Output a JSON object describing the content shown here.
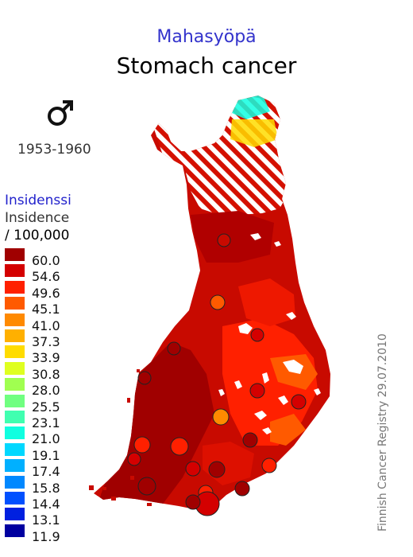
{
  "title_fi": "Mahasyöpä",
  "title_en": "Stomach cancer",
  "sex_icon": "male-symbol",
  "period": "1953-1960",
  "legend": {
    "title_fi": "Insidenssi",
    "title_en": "Insidence",
    "unit": "/ 100,000",
    "items": [
      {
        "label": "60.0",
        "color": "#a00000"
      },
      {
        "label": "54.6",
        "color": "#d40000"
      },
      {
        "label": "49.6",
        "color": "#ff2000"
      },
      {
        "label": "45.1",
        "color": "#ff5a00"
      },
      {
        "label": "41.0",
        "color": "#ff8a00"
      },
      {
        "label": "37.3",
        "color": "#ffb000"
      },
      {
        "label": "33.9",
        "color": "#ffdc00"
      },
      {
        "label": "30.8",
        "color": "#dfff20"
      },
      {
        "label": "28.0",
        "color": "#a0ff50"
      },
      {
        "label": "25.5",
        "color": "#70ff80"
      },
      {
        "label": "23.1",
        "color": "#40ffb0"
      },
      {
        "label": "21.0",
        "color": "#10ffe0"
      },
      {
        "label": "19.1",
        "color": "#00d8ff"
      },
      {
        "label": "17.4",
        "color": "#00b0ff"
      },
      {
        "label": "15.8",
        "color": "#0088ff"
      },
      {
        "label": "14.4",
        "color": "#0050ff"
      },
      {
        "label": "13.1",
        "color": "#0020e0"
      },
      {
        "label": "11.9",
        "color": "#0000a0"
      }
    ]
  },
  "credit": "Finnish Cancer Registry 29.07.2010",
  "colors": {
    "base": "#c80a00",
    "dark": "#a00000",
    "mid": "#ff2000",
    "orange": "#ff5a00",
    "light_orange": "#ff8a00",
    "hatch": "#d41000",
    "north_yellow": "#ffdc00",
    "north_cyan": "#10ffe0"
  }
}
